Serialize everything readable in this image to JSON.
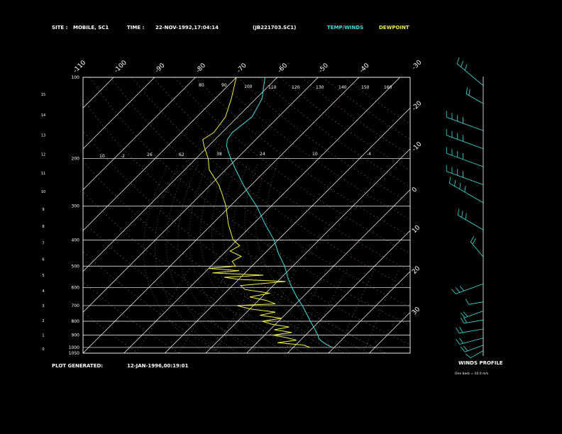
{
  "header": {
    "site_label": "SITE :",
    "site": "MOBILE, SC1",
    "time_label": "TIME :",
    "time": "22-NOV-1992,17:04:14",
    "file": "(JB221703.SC1)",
    "temp_winds_label": "TEMP/WINDS",
    "dewpoint_label": "DEWPOINT"
  },
  "footer": {
    "generated_label": "PLOT GENERATED:",
    "generated": "12-JAN-1996,00:19:01"
  },
  "winds_panel": {
    "title": "WINDS PROFILE",
    "note": "One barb = 10.0 m/s"
  },
  "colors": {
    "background": "#000000",
    "temperature": "#40e0e0",
    "dewpoint": "#f0f040",
    "isotherm": "#ffffff",
    "isobar": "#ffffff",
    "dry_adiabat": "#e08040",
    "moist_adiabat": "#40a0a0",
    "mixing_ratio": "#e0e0a0",
    "winds": "#40e0e0",
    "text": "#ffffff"
  },
  "chart_data": {
    "type": "skew-t log-p",
    "title": "",
    "pressure_range_mb": [
      1050,
      100
    ],
    "temp_range_c": [
      -40,
      40
    ],
    "isobar_labels": [
      "100",
      "200",
      "300",
      "400",
      "500",
      "600",
      "700",
      "800",
      "900",
      "1000",
      "1050"
    ],
    "isobars_mb": [
      100,
      200,
      300,
      400,
      500,
      600,
      700,
      800,
      900,
      1000,
      1050
    ],
    "isotherm_top_labels": [
      "-110",
      "-100",
      "-90",
      "-80",
      "-70",
      "-60",
      "-50",
      "-40"
    ],
    "isotherm_right_labels": [
      "-30",
      "-20",
      "-10",
      "0",
      "10",
      "20",
      "30"
    ],
    "altitude_km_labels": [
      "0",
      "1",
      "2",
      "3",
      "4",
      "5",
      "6",
      "7",
      "8",
      "9",
      "10",
      "11",
      "12",
      "13",
      "14",
      "15"
    ],
    "altitude_km": [
      0,
      1,
      2,
      3,
      4,
      5,
      6,
      7,
      8,
      9,
      10,
      11,
      12,
      13,
      14,
      15
    ],
    "dry_adiabat_labels": [
      "10",
      "-2",
      "26",
      "62",
      "38",
      "24",
      "10",
      "-4"
    ],
    "moist_adiabat_labels": [
      "80",
      "90",
      "100",
      "110",
      "120",
      "130",
      "140",
      "150",
      "160"
    ],
    "series": [
      {
        "name": "TEMP/WINDS",
        "points": [
          [
            1000,
            19.5
          ],
          [
            970,
            17.0
          ],
          [
            950,
            15.5
          ],
          [
            925,
            14.0
          ],
          [
            900,
            13.0
          ],
          [
            850,
            10.5
          ],
          [
            800,
            7.8
          ],
          [
            750,
            5.0
          ],
          [
            700,
            2.0
          ],
          [
            650,
            -1.5
          ],
          [
            600,
            -5.0
          ],
          [
            550,
            -8.5
          ],
          [
            500,
            -12.0
          ],
          [
            450,
            -16.5
          ],
          [
            400,
            -21.0
          ],
          [
            350,
            -27.0
          ],
          [
            300,
            -33.5
          ],
          [
            270,
            -38.5
          ],
          [
            250,
            -42.0
          ],
          [
            220,
            -47.5
          ],
          [
            200,
            -51.5
          ],
          [
            180,
            -55.5
          ],
          [
            170,
            -57.0
          ],
          [
            160,
            -57.5
          ],
          [
            140,
            -56.5
          ],
          [
            120,
            -58.5
          ],
          [
            100,
            -63.0
          ]
        ]
      },
      {
        "name": "DEWPOINT",
        "points": [
          [
            1000,
            14.0
          ],
          [
            980,
            12.0
          ],
          [
            960,
            5.0
          ],
          [
            940,
            9.0
          ],
          [
            920,
            6.0
          ],
          [
            900,
            2.0
          ],
          [
            880,
            6.0
          ],
          [
            860,
            1.0
          ],
          [
            840,
            4.0
          ],
          [
            820,
            -1.0
          ],
          [
            800,
            -4.0
          ],
          [
            780,
            0.0
          ],
          [
            760,
            -6.0
          ],
          [
            740,
            -3.0
          ],
          [
            720,
            -10.0
          ],
          [
            700,
            -14.0
          ],
          [
            690,
            -5.0
          ],
          [
            670,
            -8.0
          ],
          [
            650,
            -13.0
          ],
          [
            630,
            -9.0
          ],
          [
            610,
            -16.0
          ],
          [
            590,
            -18.0
          ],
          [
            570,
            -8.0
          ],
          [
            560,
            -20.0
          ],
          [
            550,
            -24.0
          ],
          [
            540,
            -15.0
          ],
          [
            530,
            -28.0
          ],
          [
            520,
            -22.0
          ],
          [
            510,
            -30.0
          ],
          [
            500,
            -24.0
          ],
          [
            480,
            -26.0
          ],
          [
            460,
            -25.0
          ],
          [
            440,
            -29.0
          ],
          [
            420,
            -28.0
          ],
          [
            400,
            -31.0
          ],
          [
            350,
            -36.0
          ],
          [
            300,
            -41.0
          ],
          [
            270,
            -45.0
          ],
          [
            250,
            -48.0
          ],
          [
            220,
            -54.0
          ],
          [
            200,
            -57.0
          ],
          [
            180,
            -61.0
          ],
          [
            170,
            -63.0
          ],
          [
            160,
            -62.0
          ],
          [
            140,
            -63.0
          ],
          [
            120,
            -66.0
          ],
          [
            100,
            -70.0
          ]
        ]
      }
    ],
    "winds": [
      {
        "alt_km": 0.3,
        "dir_deg": 240,
        "speed_ms": 15
      },
      {
        "alt_km": 0.6,
        "dir_deg": 250,
        "speed_ms": 20
      },
      {
        "alt_km": 1.0,
        "dir_deg": 255,
        "speed_ms": 25
      },
      {
        "alt_km": 1.5,
        "dir_deg": 260,
        "speed_ms": 25
      },
      {
        "alt_km": 2.0,
        "dir_deg": 260,
        "speed_ms": 20
      },
      {
        "alt_km": 2.5,
        "dir_deg": 250,
        "speed_ms": 20
      },
      {
        "alt_km": 3.0,
        "dir_deg": 260,
        "speed_ms": 15
      },
      {
        "alt_km": 4.0,
        "dir_deg": 250,
        "speed_ms": 30
      },
      {
        "alt_km": 5.5,
        "dir_deg": 320,
        "speed_ms": 20
      },
      {
        "alt_km": 7.0,
        "dir_deg": 300,
        "speed_ms": 30
      },
      {
        "alt_km": 8.5,
        "dir_deg": 300,
        "speed_ms": 40
      },
      {
        "alt_km": 9.5,
        "dir_deg": 290,
        "speed_ms": 40
      },
      {
        "alt_km": 10.5,
        "dir_deg": 290,
        "speed_ms": 40
      },
      {
        "alt_km": 11.5,
        "dir_deg": 290,
        "speed_ms": 40
      },
      {
        "alt_km": 12.5,
        "dir_deg": 290,
        "speed_ms": 40
      },
      {
        "alt_km": 14.0,
        "dir_deg": 300,
        "speed_ms": 20
      },
      {
        "alt_km": 15.0,
        "dir_deg": 310,
        "speed_ms": 35
      }
    ]
  }
}
